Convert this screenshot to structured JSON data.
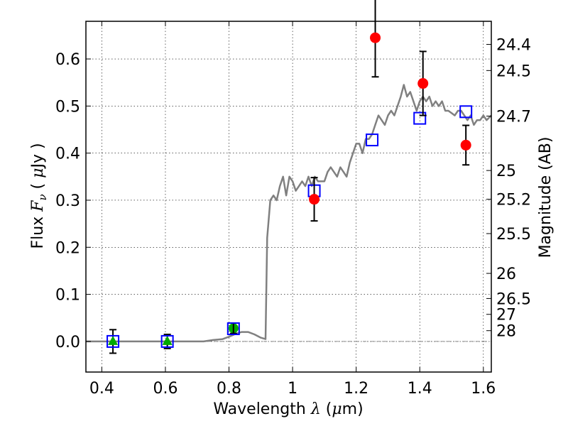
{
  "chart_data": {
    "type": "scatter",
    "xlabel": "Wavelength  λ (μm)",
    "ylabel": "Flux  Fν  ( μJy )",
    "y2label": "Magnitude (AB)",
    "xlim": [
      0.35,
      1.625
    ],
    "ylim": [
      -0.065,
      0.68
    ],
    "x_ticks": [
      0.4,
      0.6,
      0.8,
      1.0,
      1.2,
      1.4,
      1.6
    ],
    "x_tick_labels": [
      "0.4",
      "0.6",
      "0.8",
      "1",
      "1.2",
      "1.4",
      "1.6"
    ],
    "y_ticks": [
      0.0,
      0.1,
      0.2,
      0.3,
      0.4,
      0.5,
      0.6
    ],
    "y_tick_labels": [
      "0.0",
      "0.1",
      "0.2",
      "0.3",
      "0.4",
      "0.5",
      "0.6"
    ],
    "mag_ticks": [
      "24.4",
      "24.5",
      "24.7",
      "25",
      "25.2",
      "25.5",
      "26",
      "26.5",
      "27",
      "28"
    ],
    "grid": true,
    "colors": {
      "model": "#808080",
      "observed": "#ff0000",
      "upper": "#00aa00",
      "model_band": "#0000ff",
      "error": "#000000"
    },
    "series": [
      {
        "role": "model_spectrum",
        "x": [
          0.35,
          0.45,
          0.55,
          0.65,
          0.72,
          0.75,
          0.78,
          0.8,
          0.82,
          0.84,
          0.86,
          0.88,
          0.9,
          0.915,
          0.92,
          0.93,
          0.94,
          0.95,
          0.96,
          0.97,
          0.98,
          0.99,
          1.0,
          1.01,
          1.02,
          1.03,
          1.04,
          1.05,
          1.06,
          1.07,
          1.08,
          1.09,
          1.1,
          1.11,
          1.12,
          1.13,
          1.14,
          1.15,
          1.16,
          1.17,
          1.18,
          1.19,
          1.2,
          1.21,
          1.22,
          1.23,
          1.24,
          1.25,
          1.26,
          1.27,
          1.28,
          1.29,
          1.3,
          1.31,
          1.32,
          1.33,
          1.34,
          1.35,
          1.36,
          1.37,
          1.38,
          1.39,
          1.4,
          1.41,
          1.42,
          1.43,
          1.44,
          1.45,
          1.46,
          1.47,
          1.48,
          1.49,
          1.5,
          1.51,
          1.52,
          1.53,
          1.54,
          1.55,
          1.56,
          1.57,
          1.58,
          1.59,
          1.6,
          1.61,
          1.625
        ],
        "y": [
          0.0,
          0.0,
          0.0,
          0.0,
          0.0,
          0.003,
          0.005,
          0.01,
          0.016,
          0.02,
          0.02,
          0.015,
          0.008,
          0.005,
          0.22,
          0.3,
          0.31,
          0.3,
          0.33,
          0.35,
          0.31,
          0.35,
          0.34,
          0.32,
          0.33,
          0.34,
          0.33,
          0.35,
          0.33,
          0.35,
          0.34,
          0.34,
          0.34,
          0.36,
          0.37,
          0.36,
          0.35,
          0.37,
          0.36,
          0.35,
          0.38,
          0.4,
          0.42,
          0.42,
          0.4,
          0.43,
          0.43,
          0.44,
          0.46,
          0.48,
          0.47,
          0.46,
          0.48,
          0.49,
          0.48,
          0.5,
          0.52,
          0.545,
          0.52,
          0.53,
          0.51,
          0.49,
          0.51,
          0.52,
          0.51,
          0.52,
          0.5,
          0.51,
          0.5,
          0.51,
          0.49,
          0.49,
          0.485,
          0.48,
          0.49,
          0.49,
          0.48,
          0.47,
          0.48,
          0.46,
          0.47,
          0.47,
          0.48,
          0.47,
          0.48
        ]
      },
      {
        "role": "model_band_flux",
        "x": [
          0.435,
          0.606,
          0.814,
          1.068,
          1.25,
          1.4,
          1.545
        ],
        "y": [
          0.0,
          0.0,
          0.027,
          0.32,
          0.428,
          0.474,
          0.488
        ]
      },
      {
        "role": "observed",
        "x": [
          1.068,
          1.26,
          1.41,
          1.545
        ],
        "y": [
          0.302,
          0.645,
          0.548,
          0.417
        ],
        "yerr": [
          0.046,
          0.083,
          0.068,
          0.042
        ]
      },
      {
        "role": "upper_limit",
        "x": [
          0.435,
          0.606
        ],
        "y": [
          0.0,
          0.0
        ],
        "yerr": [
          0.025,
          0.015
        ]
      },
      {
        "role": "detection",
        "x": [
          0.814
        ],
        "y": [
          0.028
        ],
        "yerr": [
          0.011
        ]
      }
    ]
  }
}
